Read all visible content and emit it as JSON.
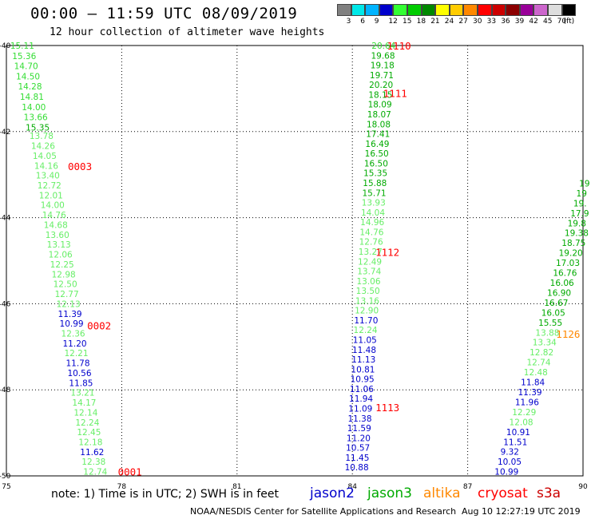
{
  "header": {
    "title": "00:00 — 11:59 UTC 08/09/2019",
    "subtitle": "12 hour collection of altimeter wave heights"
  },
  "colorbar": {
    "unit": "(ft)",
    "bins": [
      {
        "color": "#808080",
        "label": "3"
      },
      {
        "color": "#00e8e8",
        "label": "6"
      },
      {
        "color": "#00b4ff",
        "label": "9"
      },
      {
        "color": "#0000cc",
        "label": "12"
      },
      {
        "color": "#33ff33",
        "label": "15"
      },
      {
        "color": "#00cc00",
        "label": "18"
      },
      {
        "color": "#008800",
        "label": "21"
      },
      {
        "color": "#ffff00",
        "label": "24"
      },
      {
        "color": "#ffcc00",
        "label": "27"
      },
      {
        "color": "#ff8800",
        "label": "30"
      },
      {
        "color": "#ff0000",
        "label": "33"
      },
      {
        "color": "#cc0000",
        "label": "36"
      },
      {
        "color": "#8b0000",
        "label": "39"
      },
      {
        "color": "#990099",
        "label": "42"
      },
      {
        "color": "#cc66cc",
        "label": "45"
      },
      {
        "color": "#dddddd",
        "label": "70"
      },
      {
        "color": "#000000",
        "label": ""
      }
    ]
  },
  "chart_data": {
    "type": "scatter",
    "xlim": [
      75,
      90
    ],
    "ylim": [
      -50,
      -40
    ],
    "x_ticks": [
      "75",
      "78",
      "81",
      "84",
      "87",
      "90"
    ],
    "y_ticks": [
      "-40",
      "-42",
      "-44",
      "-46",
      "-48",
      "-50"
    ],
    "grid": true,
    "series": [
      {
        "name": "jason2",
        "color": "#0000cc"
      },
      {
        "name": "jason3",
        "color": "#00aa00"
      },
      {
        "name": "altika",
        "color": "#ff8800"
      },
      {
        "name": "cryosat",
        "color": "#ff0000"
      },
      {
        "name": "s3a",
        "color": "#cc0000"
      }
    ],
    "time_labels": [
      {
        "text": "0003",
        "lon": 76.6,
        "lat": -42.8,
        "color": "#ff0000"
      },
      {
        "text": "0002",
        "lon": 77.1,
        "lat": -46.5,
        "color": "#ff0000"
      },
      {
        "text": "0001",
        "lon": 77.9,
        "lat": -49.9,
        "color": "#ff0000"
      },
      {
        "text": "1110",
        "lon": 84.9,
        "lat": -40.0,
        "color": "#ff0000"
      },
      {
        "text": "1111",
        "lon": 84.8,
        "lat": -41.1,
        "color": "#ff0000"
      },
      {
        "text": "1112",
        "lon": 84.6,
        "lat": -44.8,
        "color": "#ff0000"
      },
      {
        "text": "1113",
        "lon": 84.6,
        "lat": -48.4,
        "color": "#ff0000"
      },
      {
        "text": "1126",
        "lon": 89.3,
        "lat": -46.7,
        "color": "#ff8800"
      }
    ],
    "tracks": [
      {
        "satellite": "jason3",
        "start_lon": 75.1,
        "start_lat": -40.0,
        "end_lon": 75.5,
        "end_lat": -41.9,
        "points": [
          {
            "v": "15.11",
            "c": "#33dd33"
          },
          {
            "v": "15.36",
            "c": "#33dd33"
          },
          {
            "v": "14.70",
            "c": "#33dd33"
          },
          {
            "v": "14.50",
            "c": "#33dd33"
          },
          {
            "v": "14.28",
            "c": "#33dd33"
          },
          {
            "v": "14.81",
            "c": "#33dd33"
          },
          {
            "v": "14.00",
            "c": "#33dd33"
          },
          {
            "v": "13.66",
            "c": "#33dd33"
          },
          {
            "v": "15.35",
            "c": "#00aa00"
          }
        ]
      },
      {
        "satellite": "jason3",
        "start_lon": 75.6,
        "start_lat": -42.1,
        "end_lon": 77.0,
        "end_lat": -49.9,
        "points": [
          {
            "v": "13.78",
            "c": "#66ee66"
          },
          {
            "v": "14.26",
            "c": "#66ee66"
          },
          {
            "v": "14.05",
            "c": "#66ee66"
          },
          {
            "v": "14.16",
            "c": "#66ee66"
          },
          {
            "v": "13.40",
            "c": "#66ee66"
          },
          {
            "v": "12.72",
            "c": "#66ee66"
          },
          {
            "v": "12.01",
            "c": "#66ee66"
          },
          {
            "v": "14.00",
            "c": "#66ee66"
          },
          {
            "v": "14.76",
            "c": "#66ee66"
          },
          {
            "v": "14.68",
            "c": "#66ee66"
          },
          {
            "v": "13.60",
            "c": "#66ee66"
          },
          {
            "v": "13.13",
            "c": "#66ee66"
          },
          {
            "v": "12.06",
            "c": "#66ee66"
          },
          {
            "v": "12.25",
            "c": "#66ee66"
          },
          {
            "v": "12.98",
            "c": "#66ee66"
          },
          {
            "v": "12.50",
            "c": "#66ee66"
          },
          {
            "v": "12.77",
            "c": "#66ee66"
          },
          {
            "v": "12.13",
            "c": "#66ee66"
          },
          {
            "v": "11.39",
            "c": "#0000cc"
          },
          {
            "v": "10.99",
            "c": "#0000cc"
          },
          {
            "v": "12.36",
            "c": "#66ee66"
          },
          {
            "v": "11.20",
            "c": "#0000cc"
          },
          {
            "v": "12.21",
            "c": "#66ee66"
          },
          {
            "v": "11.78",
            "c": "#0000cc"
          },
          {
            "v": "10.56",
            "c": "#0000cc"
          },
          {
            "v": "11.85",
            "c": "#0000cc"
          },
          {
            "v": "13.21",
            "c": "#66ee66"
          },
          {
            "v": "14.17",
            "c": "#66ee66"
          },
          {
            "v": "12.14",
            "c": "#66ee66"
          },
          {
            "v": "12.24",
            "c": "#66ee66"
          },
          {
            "v": "12.45",
            "c": "#66ee66"
          },
          {
            "v": "12.18",
            "c": "#66ee66"
          },
          {
            "v": "11.62",
            "c": "#0000cc"
          },
          {
            "v": "12.38",
            "c": "#66ee66"
          },
          {
            "v": "12.74",
            "c": "#66ee66"
          }
        ]
      },
      {
        "satellite": "jason3",
        "start_lon": 84.5,
        "start_lat": -40.0,
        "end_lon": 83.8,
        "end_lat": -49.8,
        "points": [
          {
            "v": "20.64",
            "c": "#33dd33"
          },
          {
            "v": "19.68",
            "c": "#00aa00"
          },
          {
            "v": "19.18",
            "c": "#00aa00"
          },
          {
            "v": "19.71",
            "c": "#00aa00"
          },
          {
            "v": "20.20",
            "c": "#00aa00"
          },
          {
            "v": "18.15",
            "c": "#00aa00"
          },
          {
            "v": "18.09",
            "c": "#00aa00"
          },
          {
            "v": "18.07",
            "c": "#00aa00"
          },
          {
            "v": "18.08",
            "c": "#00aa00"
          },
          {
            "v": "17.41",
            "c": "#00aa00"
          },
          {
            "v": "16.49",
            "c": "#00aa00"
          },
          {
            "v": "16.50",
            "c": "#00aa00"
          },
          {
            "v": "16.50",
            "c": "#00aa00"
          },
          {
            "v": "15.35",
            "c": "#00aa00"
          },
          {
            "v": "15.88",
            "c": "#00aa00"
          },
          {
            "v": "15.71",
            "c": "#00aa00"
          },
          {
            "v": "13.93",
            "c": "#66ee66"
          },
          {
            "v": "14.04",
            "c": "#66ee66"
          },
          {
            "v": "14.96",
            "c": "#66ee66"
          },
          {
            "v": "14.76",
            "c": "#66ee66"
          },
          {
            "v": "12.76",
            "c": "#66ee66"
          },
          {
            "v": "13.27",
            "c": "#66ee66"
          },
          {
            "v": "12.49",
            "c": "#66ee66"
          },
          {
            "v": "13.74",
            "c": "#66ee66"
          },
          {
            "v": "13.06",
            "c": "#66ee66"
          },
          {
            "v": "13.50",
            "c": "#66ee66"
          },
          {
            "v": "13.16",
            "c": "#66ee66"
          },
          {
            "v": "12.90",
            "c": "#66ee66"
          },
          {
            "v": "11.70",
            "c": "#0000cc"
          },
          {
            "v": "12.24",
            "c": "#66ee66"
          },
          {
            "v": "11.05",
            "c": "#0000cc"
          },
          {
            "v": "11.48",
            "c": "#0000cc"
          },
          {
            "v": "11.13",
            "c": "#0000cc"
          },
          {
            "v": "10.81",
            "c": "#0000cc"
          },
          {
            "v": "10.95",
            "c": "#0000cc"
          },
          {
            "v": "11.06",
            "c": "#0000cc"
          },
          {
            "v": "11.94",
            "c": "#0000cc"
          },
          {
            "v": "11.09",
            "c": "#0000cc"
          },
          {
            "v": "11.38",
            "c": "#0000cc"
          },
          {
            "v": "11.59",
            "c": "#0000cc"
          },
          {
            "v": "11.20",
            "c": "#0000cc"
          },
          {
            "v": "10.57",
            "c": "#0000cc"
          },
          {
            "v": "11.45",
            "c": "#0000cc"
          },
          {
            "v": "10.88",
            "c": "#0000cc"
          }
        ]
      },
      {
        "satellite": "jason3",
        "start_lon": 89.9,
        "start_lat": -43.2,
        "end_lon": 87.7,
        "end_lat": -49.9,
        "points": [
          {
            "v": "19",
            "c": "#00aa00"
          },
          {
            "v": "19",
            "c": "#00aa00"
          },
          {
            "v": "19.",
            "c": "#00aa00"
          },
          {
            "v": "17.9",
            "c": "#00aa00"
          },
          {
            "v": "19.8",
            "c": "#00aa00"
          },
          {
            "v": "19.38",
            "c": "#00aa00"
          },
          {
            "v": "18.75",
            "c": "#00aa00"
          },
          {
            "v": "19.20",
            "c": "#00aa00"
          },
          {
            "v": "17.03",
            "c": "#00aa00"
          },
          {
            "v": "16.76",
            "c": "#00aa00"
          },
          {
            "v": "16.06",
            "c": "#00aa00"
          },
          {
            "v": "16.90",
            "c": "#00aa00"
          },
          {
            "v": "16.67",
            "c": "#00aa00"
          },
          {
            "v": "16.05",
            "c": "#00aa00"
          },
          {
            "v": "15.55",
            "c": "#00aa00"
          },
          {
            "v": "13.88",
            "c": "#66ee66"
          },
          {
            "v": "13.34",
            "c": "#66ee66"
          },
          {
            "v": "12.82",
            "c": "#66ee66"
          },
          {
            "v": "12.74",
            "c": "#66ee66"
          },
          {
            "v": "12.48",
            "c": "#66ee66"
          },
          {
            "v": "11.84",
            "c": "#0000cc"
          },
          {
            "v": "11.39",
            "c": "#0000cc"
          },
          {
            "v": "11.96",
            "c": "#0000cc"
          },
          {
            "v": "12.29",
            "c": "#66ee66"
          },
          {
            "v": "12.08",
            "c": "#66ee66"
          },
          {
            "v": "10.91",
            "c": "#0000cc"
          },
          {
            "v": "11.51",
            "c": "#0000cc"
          },
          {
            "v": "9.32",
            "c": "#0000cc"
          },
          {
            "v": "10.05",
            "c": "#0000cc"
          },
          {
            "v": "10.99",
            "c": "#0000cc"
          }
        ]
      }
    ]
  },
  "footer": {
    "note": "note: 1) Time is in UTC; 2) SWH is in feet",
    "credit": "NOAA/NESDIS Center for Satellite Applications and Research",
    "timestamp": "Aug 10 12:27:19 UTC 2019"
  }
}
